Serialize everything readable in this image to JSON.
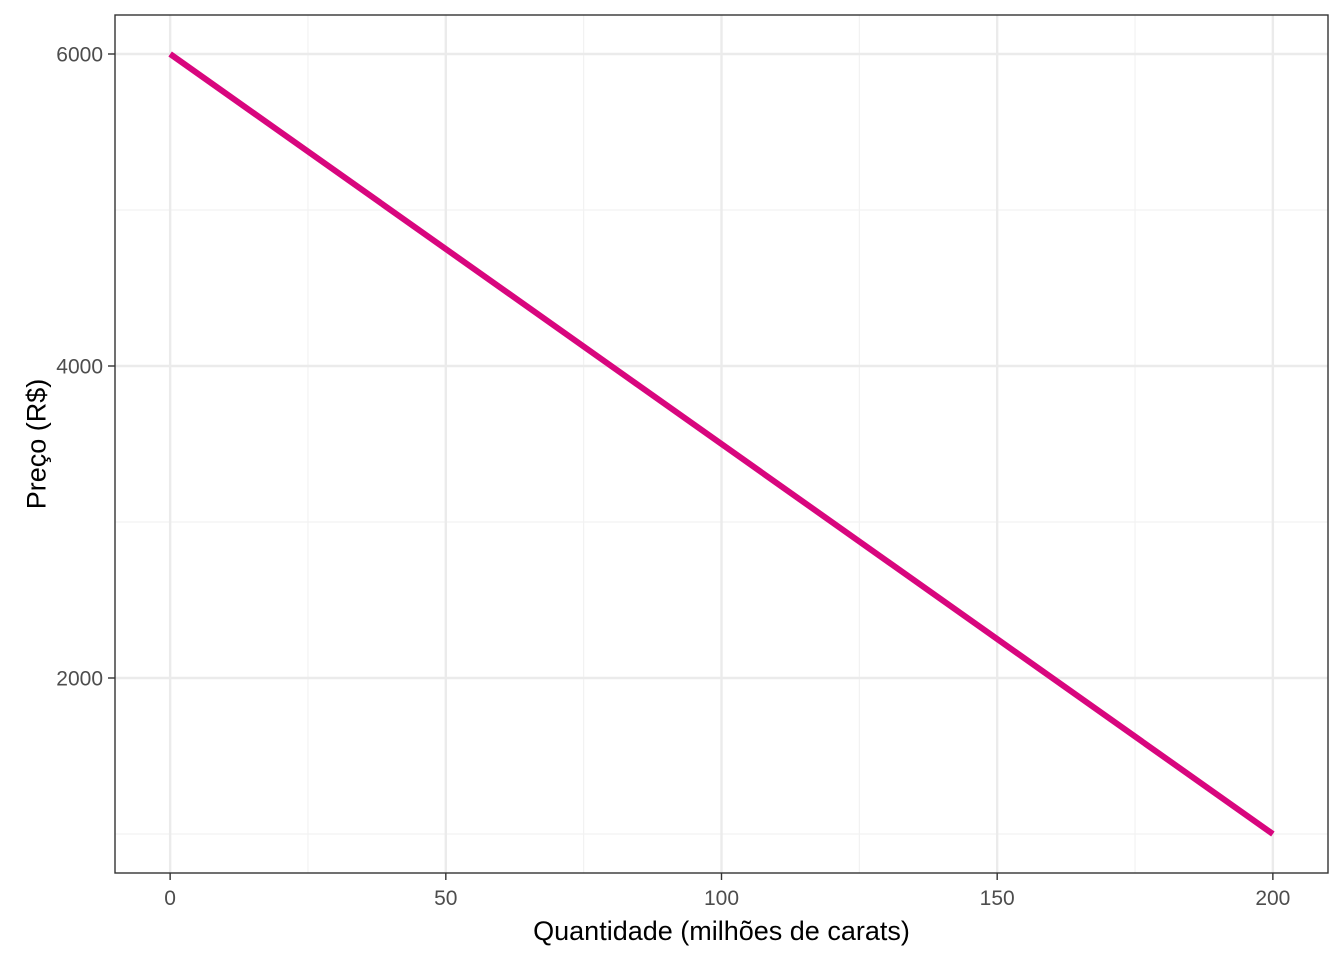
{
  "chart_data": {
    "type": "line",
    "title": "",
    "xlabel": "Quantidade (milhões de carats)",
    "ylabel": "Preço (R$)",
    "xlim": [
      -10,
      210
    ],
    "ylim": [
      750,
      6250
    ],
    "x_ticks": [
      0,
      50,
      100,
      150,
      200
    ],
    "x_tick_labels": [
      "0",
      "50",
      "100",
      "150",
      "200"
    ],
    "x_minor_ticks": [
      25,
      75,
      125,
      175
    ],
    "y_ticks": [
      2000,
      4000,
      6000
    ],
    "y_tick_labels": [
      "2000",
      "4000",
      "6000"
    ],
    "y_minor_ticks": [
      1000,
      3000,
      5000
    ],
    "grid": true,
    "legend": "none",
    "series": [
      {
        "x": [
          0,
          200
        ],
        "y": [
          6000,
          1000
        ],
        "color": "#d8067e"
      }
    ]
  },
  "colors": {
    "background": "#ffffff",
    "panel_border": "#333333",
    "grid_major": "#ebebeb",
    "grid_minor": "#f2f2f2"
  }
}
